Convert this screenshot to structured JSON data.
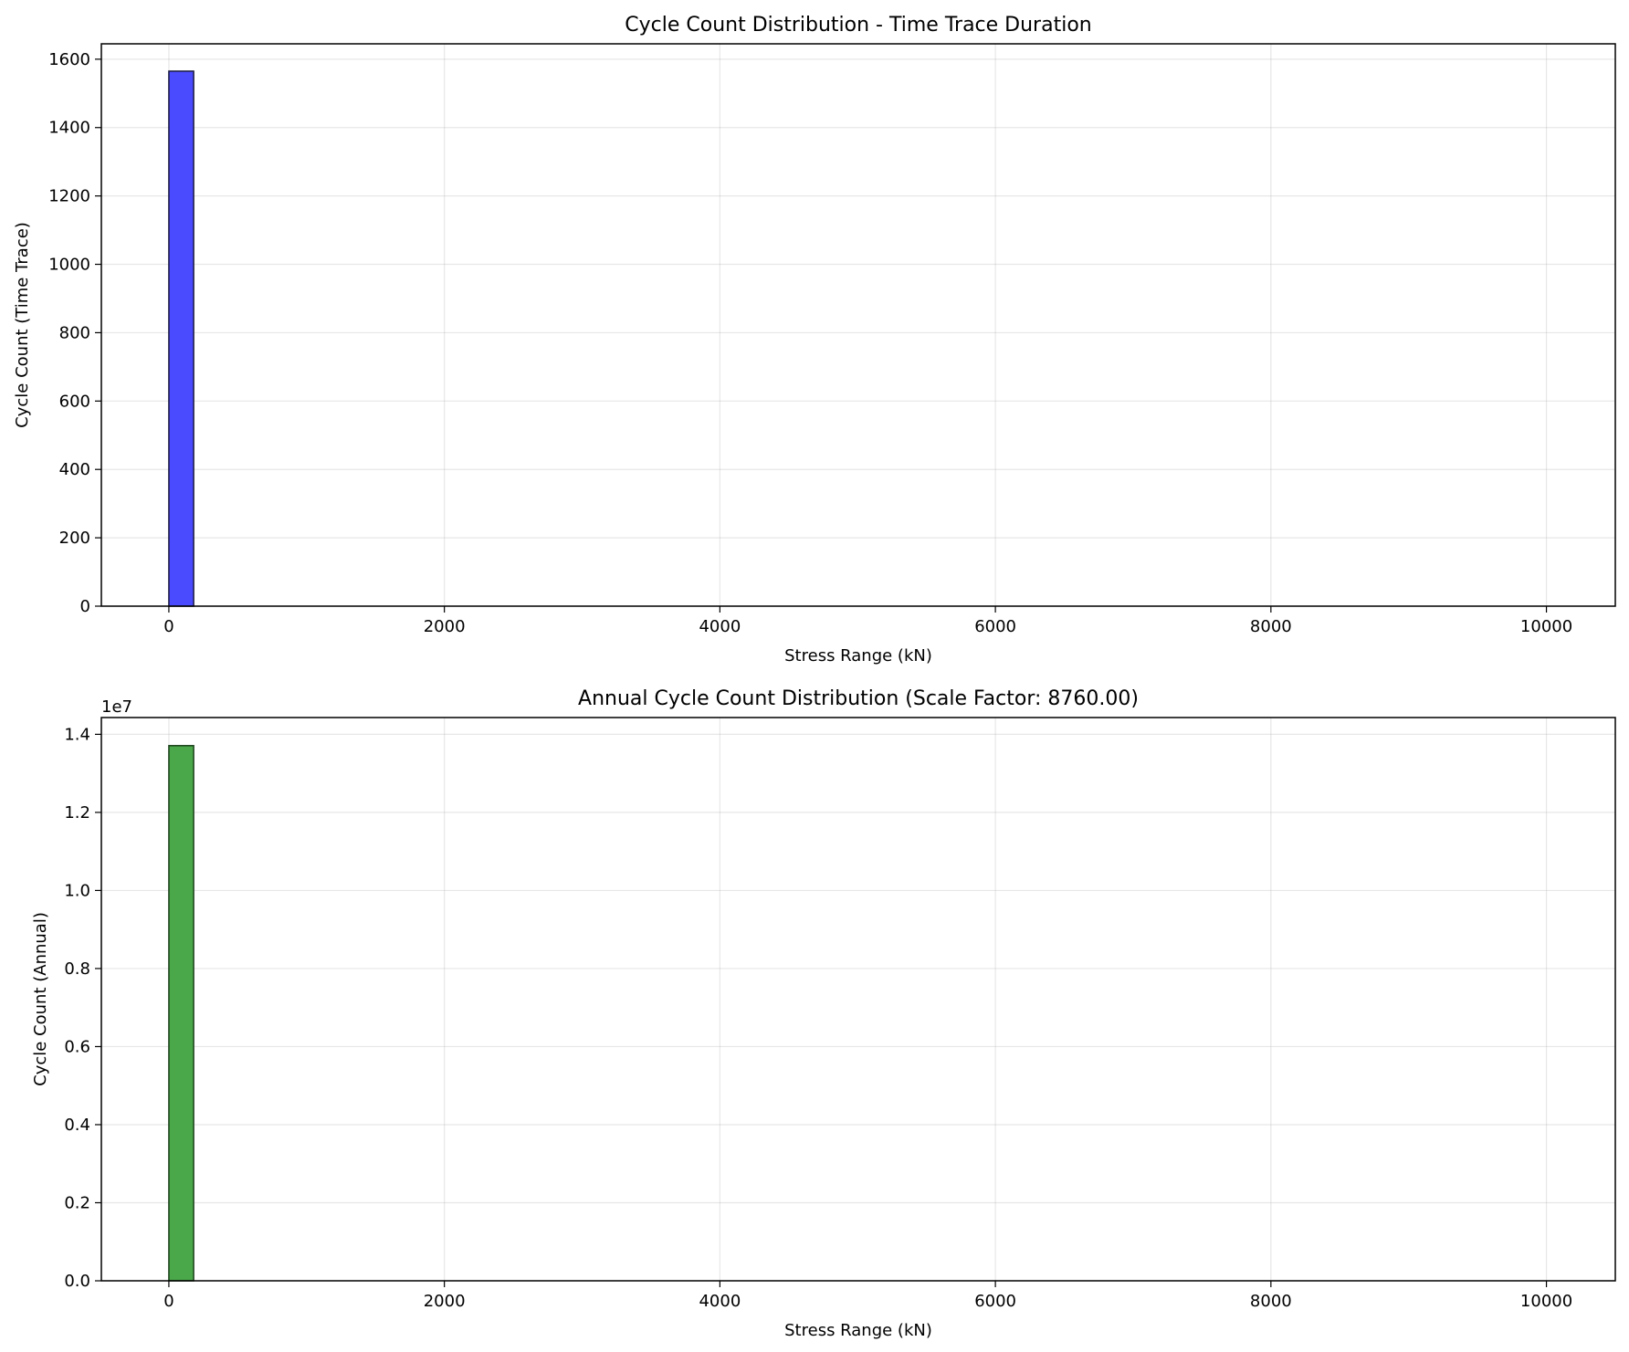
{
  "chart_data": [
    {
      "type": "bar",
      "title": "Cycle Count Distribution - Time Trace Duration",
      "xlabel": "Stress Range (kN)",
      "ylabel": "Cycle Count (Time Trace)",
      "xlim": [
        -490,
        10500
      ],
      "ylim": [
        0,
        1645
      ],
      "xticks": [
        0,
        2000,
        4000,
        6000,
        8000,
        10000
      ],
      "yticks": [
        0,
        200,
        400,
        600,
        800,
        1000,
        1200,
        1400,
        1600
      ],
      "ytick_labels": [
        "0",
        "200",
        "400",
        "600",
        "800",
        "1000",
        "1200",
        "1400",
        "1600"
      ],
      "offset_text": "",
      "bins": [
        {
          "x0": 0,
          "x1": 180,
          "value": 1565
        }
      ],
      "grid": true,
      "color": "#4a4aff",
      "edge_color": "#1a1a40"
    },
    {
      "type": "bar",
      "title": "Annual Cycle Count Distribution (Scale Factor: 8760.00)",
      "xlabel": "Stress Range (kN)",
      "ylabel": "Cycle Count (Annual)",
      "xlim": [
        -490,
        10500
      ],
      "ylim": [
        0,
        1.443
      ],
      "xticks": [
        0,
        2000,
        4000,
        6000,
        8000,
        10000
      ],
      "yticks": [
        0,
        0.2,
        0.4,
        0.6,
        0.8,
        1.0,
        1.2,
        1.4
      ],
      "ytick_labels": [
        "0.0",
        "0.2",
        "0.4",
        "0.6",
        "0.8",
        "1.0",
        "1.2",
        "1.4"
      ],
      "offset_text": "1e7",
      "bins": [
        {
          "x0": 0,
          "x1": 180,
          "value": 1.371
        }
      ],
      "grid": true,
      "color": "#4aa84a",
      "edge_color": "#1a401a"
    }
  ]
}
